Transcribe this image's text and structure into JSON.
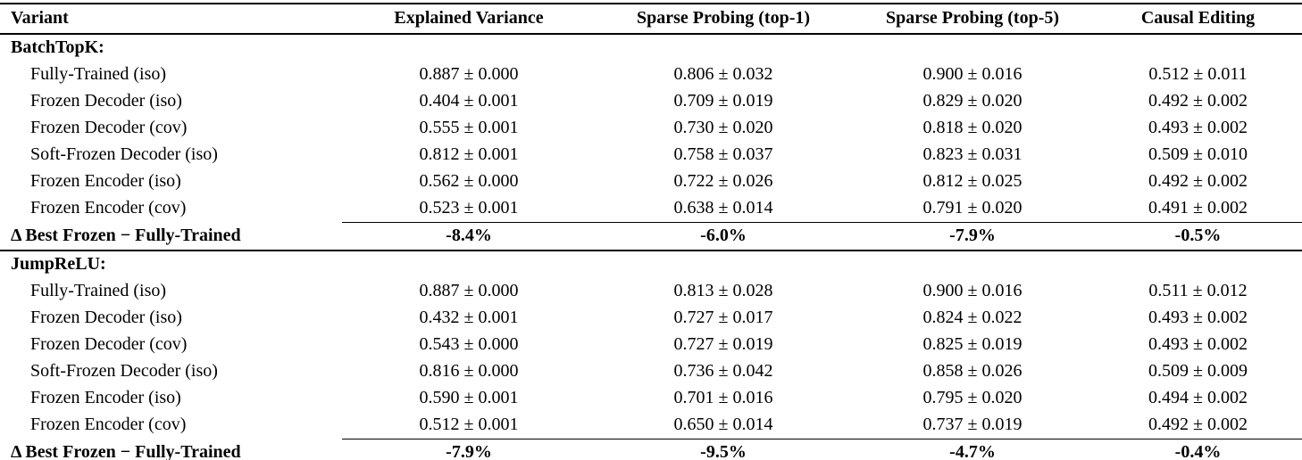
{
  "colors": {
    "text": "#000000",
    "background": "#ffffff",
    "rule": "#000000"
  },
  "table": {
    "columns": [
      "Variant",
      "Explained Variance",
      "Sparse Probing (top-1)",
      "Sparse Probing (top-5)",
      "Causal Editing"
    ],
    "sections": [
      {
        "name": "BatchTopK:",
        "rows": [
          {
            "variant": "Fully-Trained (iso)",
            "values": [
              "0.887 ± 0.000",
              "0.806 ± 0.032",
              "0.900 ± 0.016",
              "0.512 ± 0.011"
            ]
          },
          {
            "variant": "Frozen Decoder (iso)",
            "values": [
              "0.404 ± 0.001",
              "0.709 ± 0.019",
              "0.829 ± 0.020",
              "0.492 ± 0.002"
            ]
          },
          {
            "variant": "Frozen Decoder (cov)",
            "values": [
              "0.555 ± 0.001",
              "0.730 ± 0.020",
              "0.818 ± 0.020",
              "0.493 ± 0.002"
            ]
          },
          {
            "variant": "Soft-Frozen Decoder (iso)",
            "values": [
              "0.812 ± 0.001",
              "0.758 ± 0.037",
              "0.823 ± 0.031",
              "0.509 ± 0.010"
            ]
          },
          {
            "variant": "Frozen Encoder (iso)",
            "values": [
              "0.562 ± 0.000",
              "0.722 ± 0.026",
              "0.812 ± 0.025",
              "0.492 ± 0.002"
            ]
          },
          {
            "variant": "Frozen Encoder (cov)",
            "values": [
              "0.523 ± 0.001",
              "0.638 ± 0.014",
              "0.791 ± 0.020",
              "0.491 ± 0.002"
            ]
          }
        ],
        "delta": {
          "label": "Δ Best Frozen − Fully-Trained",
          "values": [
            "-8.4%",
            "-6.0%",
            "-7.9%",
            "-0.5%"
          ]
        }
      },
      {
        "name": "JumpReLU:",
        "rows": [
          {
            "variant": "Fully-Trained (iso)",
            "values": [
              "0.887 ± 0.000",
              "0.813 ± 0.028",
              "0.900 ± 0.016",
              "0.511 ± 0.012"
            ]
          },
          {
            "variant": "Frozen Decoder (iso)",
            "values": [
              "0.432 ± 0.001",
              "0.727 ± 0.017",
              "0.824 ± 0.022",
              "0.493 ± 0.002"
            ]
          },
          {
            "variant": "Frozen Decoder (cov)",
            "values": [
              "0.543 ± 0.000",
              "0.727 ± 0.019",
              "0.825 ± 0.019",
              "0.493 ± 0.002"
            ]
          },
          {
            "variant": "Soft-Frozen Decoder (iso)",
            "values": [
              "0.816 ± 0.000",
              "0.736 ± 0.042",
              "0.858 ± 0.026",
              "0.509 ± 0.009"
            ]
          },
          {
            "variant": "Frozen Encoder (iso)",
            "values": [
              "0.590 ± 0.001",
              "0.701 ± 0.016",
              "0.795 ± 0.020",
              "0.494 ± 0.002"
            ]
          },
          {
            "variant": "Frozen Encoder (cov)",
            "values": [
              "0.512 ± 0.001",
              "0.650 ± 0.014",
              "0.737 ± 0.019",
              "0.492 ± 0.002"
            ]
          }
        ],
        "delta": {
          "label": "Δ Best Frozen − Fully-Trained",
          "values": [
            "-7.9%",
            "-9.5%",
            "-4.7%",
            "-0.4%"
          ]
        }
      }
    ]
  },
  "chart_data": {
    "type": "table",
    "columns": [
      "Variant",
      "Explained Variance",
      "Sparse Probing (top-1)",
      "Sparse Probing (top-5)",
      "Causal Editing"
    ],
    "rows": [
      [
        "BatchTopK:",
        "",
        "",
        "",
        ""
      ],
      [
        "Fully-Trained (iso)",
        "0.887 ± 0.000",
        "0.806 ± 0.032",
        "0.900 ± 0.016",
        "0.512 ± 0.011"
      ],
      [
        "Frozen Decoder (iso)",
        "0.404 ± 0.001",
        "0.709 ± 0.019",
        "0.829 ± 0.020",
        "0.492 ± 0.002"
      ],
      [
        "Frozen Decoder (cov)",
        "0.555 ± 0.001",
        "0.730 ± 0.020",
        "0.818 ± 0.020",
        "0.493 ± 0.002"
      ],
      [
        "Soft-Frozen Decoder (iso)",
        "0.812 ± 0.001",
        "0.758 ± 0.037",
        "0.823 ± 0.031",
        "0.509 ± 0.010"
      ],
      [
        "Frozen Encoder (iso)",
        "0.562 ± 0.000",
        "0.722 ± 0.026",
        "0.812 ± 0.025",
        "0.492 ± 0.002"
      ],
      [
        "Frozen Encoder (cov)",
        "0.523 ± 0.001",
        "0.638 ± 0.014",
        "0.791 ± 0.020",
        "0.491 ± 0.002"
      ],
      [
        "Δ Best Frozen − Fully-Trained",
        "-8.4%",
        "-6.0%",
        "-7.9%",
        "-0.5%"
      ],
      [
        "JumpReLU:",
        "",
        "",
        "",
        ""
      ],
      [
        "Fully-Trained (iso)",
        "0.887 ± 0.000",
        "0.813 ± 0.028",
        "0.900 ± 0.016",
        "0.511 ± 0.012"
      ],
      [
        "Frozen Decoder (iso)",
        "0.432 ± 0.001",
        "0.727 ± 0.017",
        "0.824 ± 0.022",
        "0.493 ± 0.002"
      ],
      [
        "Frozen Decoder (cov)",
        "0.543 ± 0.000",
        "0.727 ± 0.019",
        "0.825 ± 0.019",
        "0.493 ± 0.002"
      ],
      [
        "Soft-Frozen Decoder (iso)",
        "0.816 ± 0.000",
        "0.736 ± 0.042",
        "0.858 ± 0.026",
        "0.509 ± 0.009"
      ],
      [
        "Frozen Encoder (iso)",
        "0.590 ± 0.001",
        "0.701 ± 0.016",
        "0.795 ± 0.020",
        "0.494 ± 0.002"
      ],
      [
        "Frozen Encoder (cov)",
        "0.512 ± 0.001",
        "0.650 ± 0.014",
        "0.737 ± 0.019",
        "0.492 ± 0.002"
      ],
      [
        "Δ Best Frozen − Fully-Trained",
        "-7.9%",
        "-9.5%",
        "-4.7%",
        "-0.4%"
      ]
    ]
  }
}
